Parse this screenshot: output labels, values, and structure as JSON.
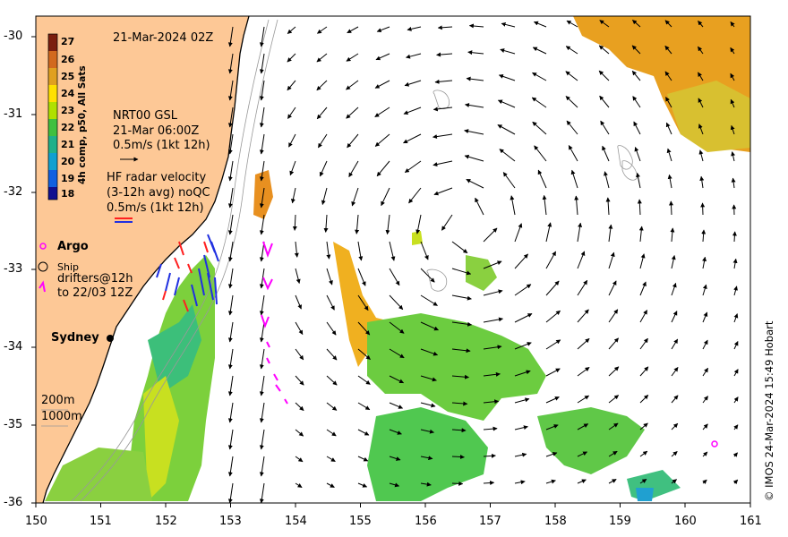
{
  "map": {
    "date": "21-Mar-2024 02Z",
    "x_ticks": [
      "150",
      "151",
      "152",
      "153",
      "154",
      "155",
      "156",
      "157",
      "158",
      "159",
      "160",
      "161"
    ],
    "y_ticks": [
      "-30",
      "-31",
      "-32",
      "-33",
      "-34",
      "-35",
      "-36"
    ],
    "colorbar": {
      "label": "4h comp, p50, All Sats",
      "ticks": [
        "27",
        "26",
        "25",
        "24",
        "23",
        "22",
        "21",
        "20",
        "19",
        "18"
      ],
      "colors": [
        "#7a1e0f",
        "#d2691e",
        "#e0a020",
        "#ffe000",
        "#b0e000",
        "#40c040",
        "#20b08a",
        "#10a0d0",
        "#1060e0",
        "#101090"
      ]
    },
    "legend": {
      "gsl_line1": "NRT00 GSL",
      "gsl_line2": "21-Mar 06:00Z",
      "gsl_line3": "0.5m/s (1kt 12h)",
      "hf_line1": "HF radar velocity",
      "hf_line2": "(3-12h avg) noQC",
      "hf_line3": "0.5m/s (1kt 12h)",
      "argo": "Argo",
      "ship": "Ship",
      "drifters_line1": "drifters@12h",
      "drifters_line2": "to 22/03 12Z",
      "city": "Sydney",
      "depth1": "200m",
      "depth2": "1000m"
    },
    "credit": "© IMOS 24-Mar-2024 15:49 Hobart",
    "colors": {
      "land": "#fdc896",
      "hf_red": "#ff2020",
      "hf_blue": "#2030e0",
      "argo": "#ff00ff",
      "drifter": "#ff00ff"
    }
  }
}
